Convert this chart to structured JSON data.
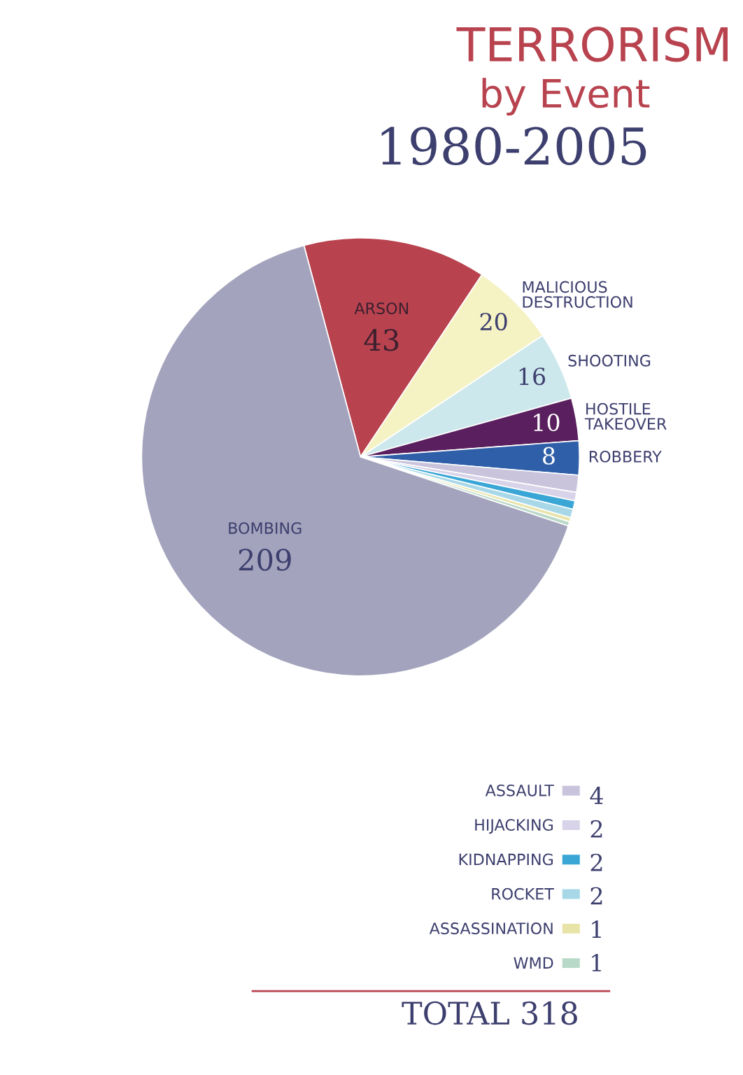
{
  "chart_data": {
    "type": "pie",
    "title": "TERRORISM by Event",
    "subtitle": "1980-2005",
    "categories": [
      "ARSON",
      "MALICIOUS DESTRUCTION",
      "SHOOTING",
      "HOSTILE TAKEOVER",
      "ROBBERY",
      "ASSAULT",
      "HIJACKING",
      "KIDNAPPING",
      "ROCKET",
      "ASSASSINATION",
      "WMD",
      "BOMBING"
    ],
    "values": [
      43,
      20,
      16,
      10,
      8,
      4,
      2,
      2,
      2,
      1,
      1,
      209
    ],
    "colors": [
      "#b8434f",
      "#f5f2c4",
      "#cde8ec",
      "#5a1f5e",
      "#2f5fa8",
      "#c9c4dc",
      "#d8d3e8",
      "#3aa6d6",
      "#a8d8e8",
      "#e8e4a8",
      "#b8d8c8",
      "#a3a3bd"
    ],
    "data_labels": true,
    "legend": "bottom",
    "annotations": [
      "TOTAL 318"
    ]
  }
}
